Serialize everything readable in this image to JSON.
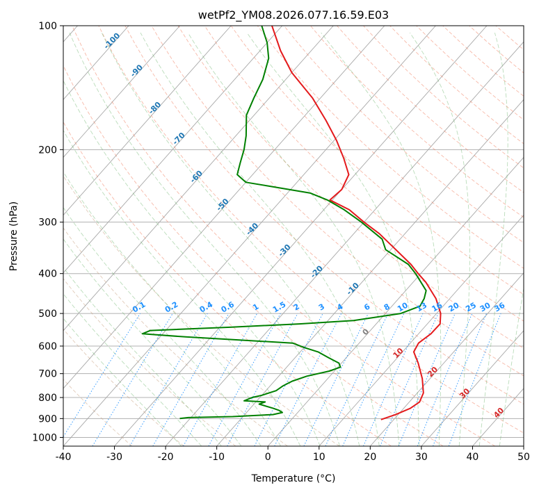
{
  "chart_data": {
    "type": "line",
    "title": "wetPf2_YM08.2026.077.16.59.E03",
    "xlabel": "Temperature (°C)",
    "ylabel": "Pressure (hPa)",
    "xlim": [
      -40,
      50
    ],
    "ylim": [
      1050,
      100
    ],
    "yscale": "log",
    "x_ticks": [
      -40,
      -30,
      -20,
      -10,
      0,
      10,
      20,
      30,
      40,
      50
    ],
    "y_ticks": [
      100,
      200,
      300,
      400,
      500,
      600,
      700,
      800,
      900,
      1000
    ],
    "grid": true,
    "skew": "skew-T log-p diagram",
    "colors": {
      "temperature": "#e41a1c",
      "dewpoint": "#008000",
      "dry_adiabat": "#f08060",
      "moist_adiabat": "#66b266",
      "mixing_ratio": "#1e90ff",
      "isotherm": "#909090"
    },
    "series": [
      {
        "role": "temperature",
        "values": [
          {
            "p": 905,
            "t": 17.5
          },
          {
            "p": 880,
            "t": 19.5
          },
          {
            "p": 850,
            "t": 21.3
          },
          {
            "p": 820,
            "t": 22.0
          },
          {
            "p": 780,
            "t": 21.2
          },
          {
            "p": 720,
            "t": 18.5
          },
          {
            "p": 660,
            "t": 15.0
          },
          {
            "p": 620,
            "t": 12.2
          },
          {
            "p": 590,
            "t": 11.6
          },
          {
            "p": 560,
            "t": 12.4
          },
          {
            "p": 530,
            "t": 12.5
          },
          {
            "p": 500,
            "t": 10.8
          },
          {
            "p": 460,
            "t": 7.3
          },
          {
            "p": 420,
            "t": 2.5
          },
          {
            "p": 400,
            "t": -0.5
          },
          {
            "p": 380,
            "t": -3.5
          },
          {
            "p": 350,
            "t": -9.0
          },
          {
            "p": 320,
            "t": -15.0
          },
          {
            "p": 300,
            "t": -20.0
          },
          {
            "p": 280,
            "t": -25.0
          },
          {
            "p": 265,
            "t": -30.5
          },
          {
            "p": 250,
            "t": -30.0
          },
          {
            "p": 230,
            "t": -31.2
          },
          {
            "p": 210,
            "t": -35.0
          },
          {
            "p": 190,
            "t": -39.5
          },
          {
            "p": 170,
            "t": -45.0
          },
          {
            "p": 150,
            "t": -51.5
          },
          {
            "p": 130,
            "t": -60.0
          },
          {
            "p": 115,
            "t": -66.0
          },
          {
            "p": 100,
            "t": -72.0
          }
        ]
      },
      {
        "role": "dewpoint",
        "values": [
          {
            "p": 900,
            "t": -22.0
          },
          {
            "p": 895,
            "t": -20.5
          },
          {
            "p": 890,
            "t": -12.0
          },
          {
            "p": 880,
            "t": -4.5
          },
          {
            "p": 870,
            "t": -3.0
          },
          {
            "p": 860,
            "t": -4.0
          },
          {
            "p": 850,
            "t": -5.5
          },
          {
            "p": 830,
            "t": -9.0
          },
          {
            "p": 820,
            "t": -8.2
          },
          {
            "p": 815,
            "t": -12.5
          },
          {
            "p": 800,
            "t": -11.5
          },
          {
            "p": 790,
            "t": -10.0
          },
          {
            "p": 770,
            "t": -8.0
          },
          {
            "p": 750,
            "t": -7.5
          },
          {
            "p": 730,
            "t": -6.5
          },
          {
            "p": 710,
            "t": -4.5
          },
          {
            "p": 690,
            "t": -1.0
          },
          {
            "p": 675,
            "t": 0.5
          },
          {
            "p": 660,
            "t": -0.5
          },
          {
            "p": 640,
            "t": -3.5
          },
          {
            "p": 620,
            "t": -6.5
          },
          {
            "p": 605,
            "t": -10.0
          },
          {
            "p": 590,
            "t": -13.0
          },
          {
            "p": 580,
            "t": -24.0
          },
          {
            "p": 570,
            "t": -35.0
          },
          {
            "p": 560,
            "t": -44.0
          },
          {
            "p": 550,
            "t": -43.0
          },
          {
            "p": 540,
            "t": -28.0
          },
          {
            "p": 530,
            "t": -15.0
          },
          {
            "p": 520,
            "t": -5.0
          },
          {
            "p": 500,
            "t": 3.0
          },
          {
            "p": 480,
            "t": 5.5
          },
          {
            "p": 460,
            "t": 5.0
          },
          {
            "p": 440,
            "t": 4.0
          },
          {
            "p": 400,
            "t": -1.0
          },
          {
            "p": 380,
            "t": -4.0
          },
          {
            "p": 350,
            "t": -11.0
          },
          {
            "p": 330,
            "t": -13.5
          },
          {
            "p": 300,
            "t": -20.5
          },
          {
            "p": 280,
            "t": -26.0
          },
          {
            "p": 265,
            "t": -31.0
          },
          {
            "p": 255,
            "t": -35.5
          },
          {
            "p": 245,
            "t": -45.0
          },
          {
            "p": 240,
            "t": -50.0
          },
          {
            "p": 230,
            "t": -53.0
          },
          {
            "p": 215,
            "t": -54.5
          },
          {
            "p": 200,
            "t": -56.0
          },
          {
            "p": 185,
            "t": -58.0
          },
          {
            "p": 165,
            "t": -61.5
          },
          {
            "p": 150,
            "t": -63.0
          },
          {
            "p": 135,
            "t": -64.5
          },
          {
            "p": 120,
            "t": -67.0
          },
          {
            "p": 110,
            "t": -70.0
          },
          {
            "p": 100,
            "t": -74.0
          }
        ]
      }
    ],
    "isotherm_labels": [
      "-100",
      "-90",
      "-80",
      "-70",
      "-60",
      "-50",
      "-40",
      "-30",
      "-20",
      "-10",
      "0",
      "10",
      "20",
      "30",
      "40"
    ],
    "mixing_ratio_labels": [
      "0.1",
      "0.2",
      "0.4",
      "0.6",
      "1",
      "1.5",
      "2",
      "3",
      "4",
      "6",
      "8",
      "10",
      "13",
      "16",
      "20",
      "25",
      "30",
      "36"
    ]
  }
}
